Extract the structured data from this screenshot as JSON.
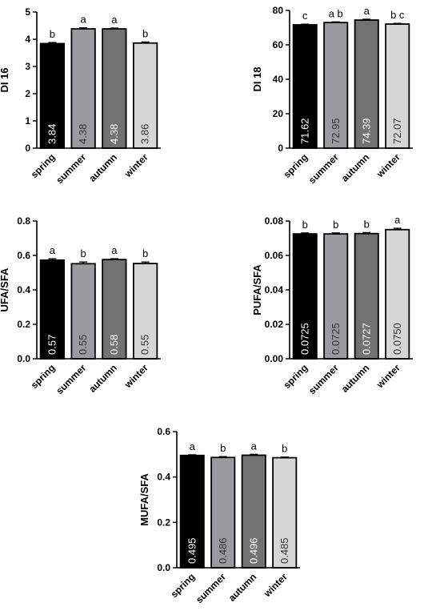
{
  "categories": [
    "spring",
    "summer",
    "autumn",
    "winter"
  ],
  "colors": [
    "#000000",
    "#9a9aa0",
    "#727272",
    "#d6d6d6"
  ],
  "chart_data": [
    {
      "type": "bar",
      "ylabel": "DI 16",
      "ylim": [
        0,
        5
      ],
      "yticks": [
        "0",
        "1",
        "2",
        "3",
        "4",
        "5"
      ],
      "categories": [
        "spring",
        "summer",
        "autumn",
        "winter"
      ],
      "values": [
        3.84,
        4.38,
        4.38,
        3.86
      ],
      "errors": [
        0.04,
        0.04,
        0.03,
        0.04
      ],
      "value_labels": [
        "3.84",
        "4.38",
        "4.38",
        "3.86"
      ],
      "letters": [
        "b",
        "a",
        "a",
        "b"
      ]
    },
    {
      "type": "bar",
      "ylabel": "DI 18",
      "ylim": [
        0,
        80
      ],
      "yticks": [
        "0",
        "20",
        "40",
        "60",
        "80"
      ],
      "categories": [
        "spring",
        "summer",
        "autumn",
        "winter"
      ],
      "values": [
        71.62,
        72.95,
        74.39,
        72.07
      ],
      "errors": [
        0.4,
        0.4,
        0.5,
        0.4
      ],
      "value_labels": [
        "71.62",
        "72.95",
        "74.39",
        "72.07"
      ],
      "letters": [
        "c",
        "a b",
        "a",
        "b c"
      ]
    },
    {
      "type": "bar",
      "ylabel": "UFA/SFA",
      "ylim": [
        0,
        0.8
      ],
      "yticks": [
        "0.0",
        "0.2",
        "0.4",
        "0.6",
        "0.8"
      ],
      "categories": [
        "spring",
        "summer",
        "autumn",
        "winter"
      ],
      "values": [
        0.573,
        0.552,
        0.576,
        0.553
      ],
      "errors": [
        0.008,
        0.01,
        0.005,
        0.009
      ],
      "value_labels": [
        "0.57",
        "0.55",
        "0.58",
        "0.55"
      ],
      "letters": [
        "a",
        "b",
        "a",
        "b"
      ]
    },
    {
      "type": "bar",
      "ylabel": "PUFA/SFA",
      "ylim": [
        0,
        0.08
      ],
      "yticks": [
        "0.00",
        "0.02",
        "0.04",
        "0.06",
        "0.08"
      ],
      "categories": [
        "spring",
        "summer",
        "autumn",
        "winter"
      ],
      "values": [
        0.0725,
        0.0725,
        0.0727,
        0.075
      ],
      "errors": [
        0.0006,
        0.0006,
        0.0006,
        0.0008
      ],
      "value_labels": [
        "0.0725",
        "0.0725",
        "0.0727",
        "0.0750"
      ],
      "letters": [
        "b",
        "b",
        "b",
        "a"
      ]
    },
    {
      "type": "bar",
      "ylabel": "MUFA/SFA",
      "ylim": [
        0,
        0.6
      ],
      "yticks": [
        "0.0",
        "0.2",
        "0.4",
        "0.6"
      ],
      "categories": [
        "spring",
        "summer",
        "autumn",
        "winter"
      ],
      "values": [
        0.495,
        0.486,
        0.496,
        0.485
      ],
      "errors": [
        0.003,
        0.004,
        0.004,
        0.003
      ],
      "value_labels": [
        "0.495",
        "0.486",
        "0.496",
        "0.485"
      ],
      "letters": [
        "a",
        "b",
        "a",
        "b"
      ]
    }
  ]
}
